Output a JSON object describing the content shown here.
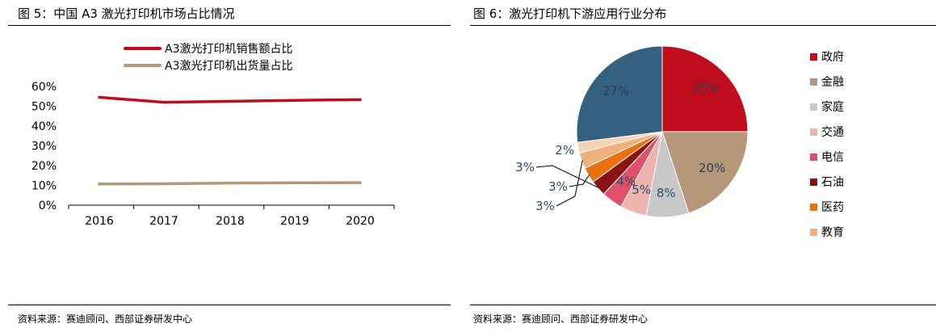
{
  "left": {
    "title": "图 5：中国 A3 激光打印机市场占比情况",
    "source": "资料来源：赛迪顾问、西部证券研发中心"
  },
  "right": {
    "title": "图 6：激光打印机下游应用行业分布",
    "source": "资料来源：赛迪顾问、西部证券研发中心"
  },
  "colors": {
    "sales_line": "#c00d1e",
    "shipment_line": "#b5977a",
    "pie": [
      "#c00d1e",
      "#b5977a",
      "#c8c8c8",
      "#eeb3ad",
      "#e0506b",
      "#8b1412",
      "#e8710d",
      "#f0b07e",
      "#f6d3b5",
      "#35607f"
    ]
  },
  "chart_data": [
    {
      "type": "line",
      "categories": [
        "2016",
        "2017",
        "2018",
        "2019",
        "2020"
      ],
      "series": [
        {
          "name": "A3激光打印机销售额占比",
          "values": [
            54.5,
            52.0,
            52.5,
            53.0,
            53.3
          ]
        },
        {
          "name": "A3激光打印机出货量占比",
          "values": [
            10.7,
            10.8,
            11.2,
            11.3,
            11.4
          ]
        }
      ],
      "yticks": [
        "60%",
        "50%",
        "40%",
        "30%",
        "20%",
        "10%",
        "0%"
      ],
      "ylim": [
        0,
        60
      ],
      "legend": "top"
    },
    {
      "type": "pie",
      "slices": [
        {
          "name": "政府",
          "value": 25,
          "label": "25%"
        },
        {
          "name": "金融",
          "value": 20,
          "label": "20%"
        },
        {
          "name": "家庭",
          "value": 8,
          "label": "8%"
        },
        {
          "name": "交通",
          "value": 5,
          "label": "5%"
        },
        {
          "name": "电信",
          "value": 4,
          "label": "4%"
        },
        {
          "name": "石油",
          "value": 3,
          "label": "3%"
        },
        {
          "name": "医药",
          "value": 3,
          "label": "3%"
        },
        {
          "name": "教育",
          "value": 3,
          "label": "3%"
        },
        {
          "name": "",
          "value": 2,
          "label": "2%"
        },
        {
          "name": "",
          "value": 27,
          "label": "27%"
        }
      ],
      "legend": "right"
    }
  ]
}
